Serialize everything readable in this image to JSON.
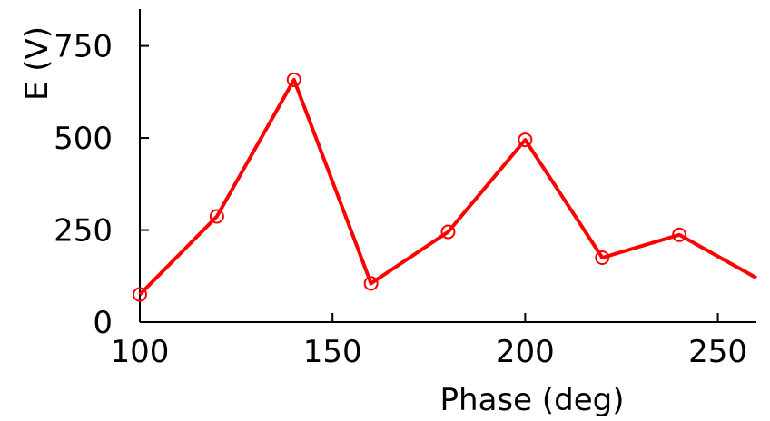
{
  "chart_data": {
    "type": "line",
    "xlabel": "Phase (deg)",
    "ylabel": "E (V)",
    "xlim": [
      100,
      260
    ],
    "ylim": [
      0,
      850
    ],
    "xticks": [
      100,
      150,
      200,
      250
    ],
    "yticks": [
      0,
      250,
      500,
      750
    ],
    "grid": false,
    "legend": "none",
    "series": [
      {
        "color": "#ff0000",
        "marker": "open-circle",
        "x": [
          100,
          120,
          140,
          160,
          180,
          200,
          220,
          240,
          260
        ],
        "y": [
          75,
          287,
          658,
          105,
          245,
          495,
          175,
          237,
          120
        ],
        "marked": [
          true,
          true,
          true,
          true,
          true,
          true,
          true,
          true,
          false
        ]
      }
    ]
  }
}
